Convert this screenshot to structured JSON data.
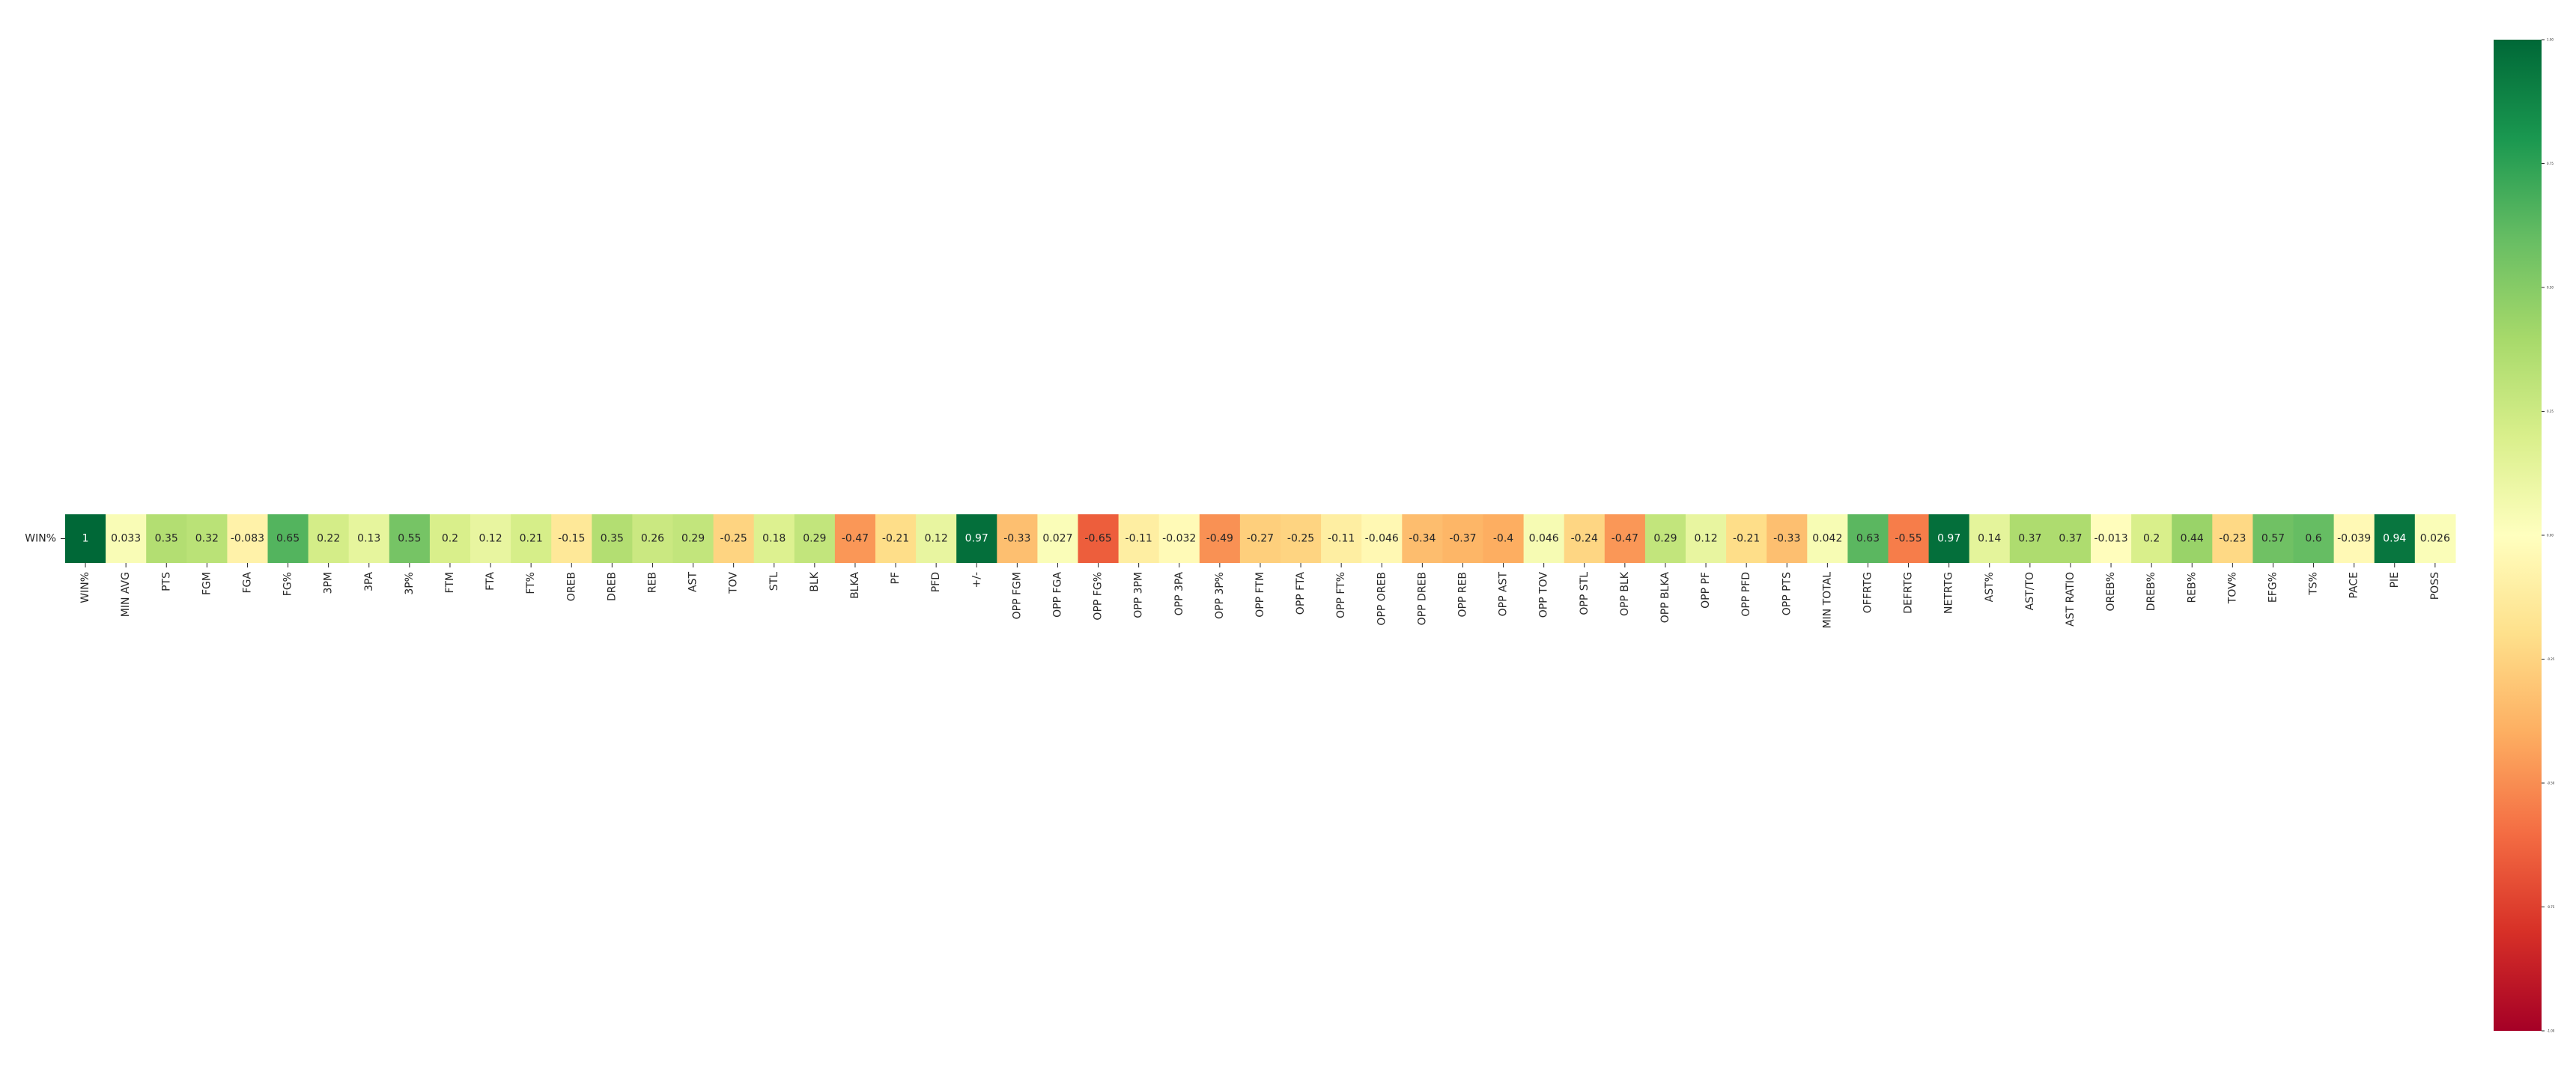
{
  "chart_data": {
    "type": "heatmap",
    "title": "",
    "row_labels": [
      "WIN%"
    ],
    "columns": [
      "WIN%",
      "MIN AVG",
      "PTS",
      "FGM",
      "FGA",
      "FG%",
      "3PM",
      "3PA",
      "3P%",
      "FTM",
      "FTA",
      "FT%",
      "OREB",
      "DREB",
      "REB",
      "AST",
      "TOV",
      "STL",
      "BLK",
      "BLKA",
      "PF",
      "PFD",
      "+/-",
      "OPP FGM",
      "OPP FGA",
      "OPP FG%",
      "OPP 3PM",
      "OPP 3PA",
      "OPP 3P%",
      "OPP FTM",
      "OPP FTA",
      "OPP FT%",
      "OPP OREB",
      "OPP DREB",
      "OPP REB",
      "OPP AST",
      "OPP TOV",
      "OPP STL",
      "OPP BLK",
      "OPP BLKA",
      "OPP PF",
      "OPP PFD",
      "OPP PTS",
      "MIN TOTAL",
      "OFFRTG",
      "DEFRTG",
      "NETRTG",
      "AST%",
      "AST/TO",
      "AST RATIO",
      "OREB%",
      "DREB%",
      "REB%",
      "TOV%",
      "EFG%",
      "TS%",
      "PACE",
      "PIE",
      "POSS"
    ],
    "values": [
      [
        1,
        0.033,
        0.35,
        0.32,
        -0.083,
        0.65,
        0.22,
        0.13,
        0.55,
        0.2,
        0.12,
        0.21,
        -0.15,
        0.35,
        0.26,
        0.29,
        -0.25,
        0.18,
        0.29,
        -0.47,
        -0.21,
        0.12,
        0.97,
        -0.33,
        0.027,
        -0.65,
        -0.11,
        -0.032,
        -0.49,
        -0.27,
        -0.25,
        -0.11,
        -0.046,
        -0.34,
        -0.37,
        -0.4,
        0.046,
        -0.24,
        -0.47,
        0.29,
        0.12,
        -0.21,
        -0.33,
        0.042,
        0.63,
        -0.55,
        0.97,
        0.14,
        0.37,
        0.37,
        -0.013,
        0.2,
        0.44,
        -0.23,
        0.57,
        0.6,
        -0.039,
        0.94,
        0.026
      ]
    ],
    "annot": true,
    "colormap": "RdYlGn",
    "vmin": -1,
    "vmax": 1,
    "colorbar": {
      "position": "right",
      "tick_values": [
        -1.0,
        -0.75,
        -0.5,
        -0.25,
        0.0,
        0.25,
        0.5,
        0.75,
        1.0
      ]
    }
  }
}
